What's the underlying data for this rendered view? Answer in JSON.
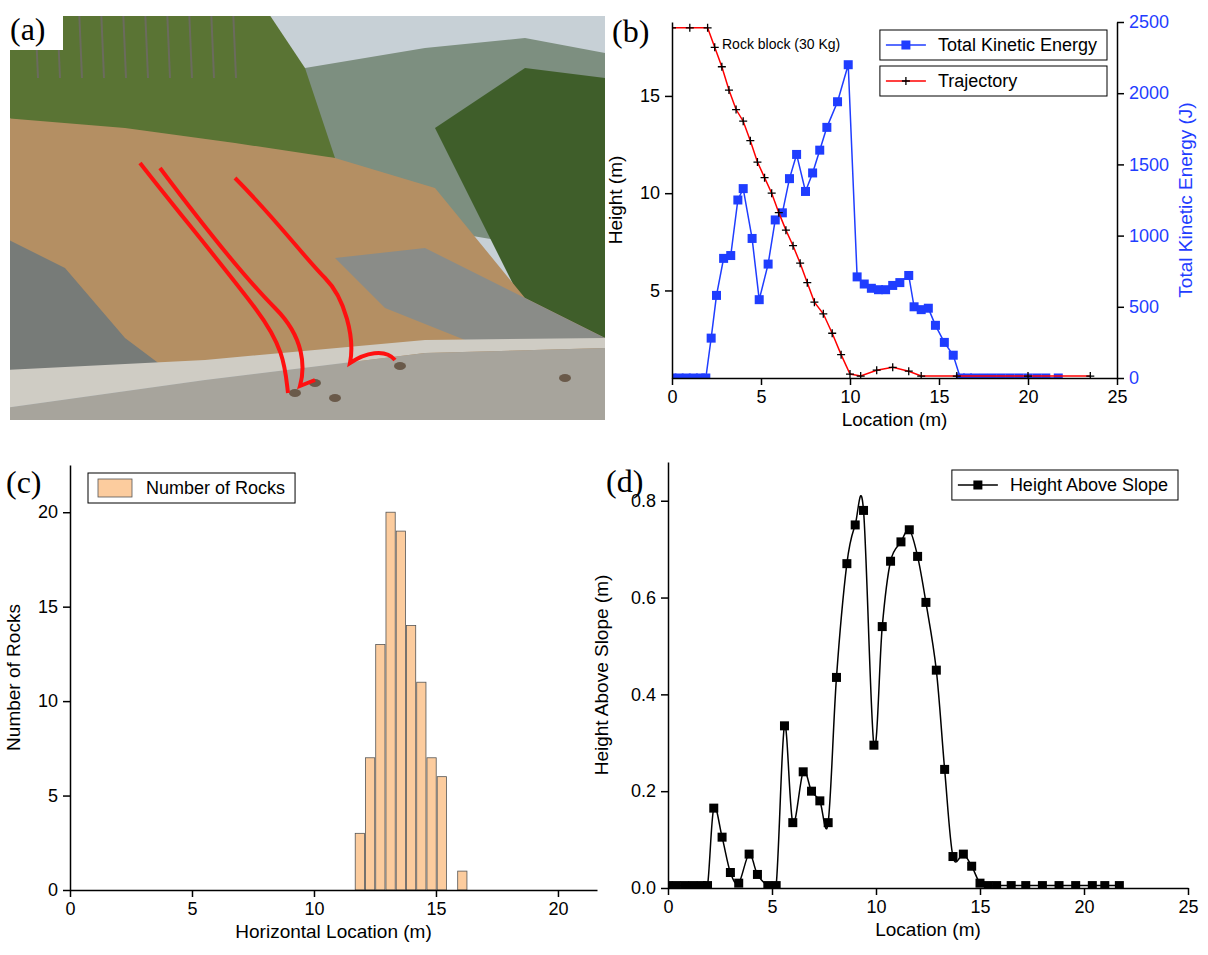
{
  "photo": {
    "panel_label": "(a)"
  },
  "chart_data": [
    {
      "type": "line",
      "panel_label": "(b)",
      "annotations": [
        "Rock block (30 Kg)"
      ],
      "xlabel": "Location (m)",
      "ylabel": "Height (m)",
      "y2label": "Total Kinetic Energy (J)",
      "xlim": [
        0,
        25
      ],
      "xticks": [
        0,
        5,
        10,
        15,
        20,
        25
      ],
      "ylim": [
        0.5,
        18.8
      ],
      "yticks": [
        5,
        10,
        15
      ],
      "y2lim": [
        0,
        2500
      ],
      "y2ticks": [
        0,
        500,
        1000,
        1500,
        2000,
        2500
      ],
      "legend": "upper right",
      "series": [
        {
          "name": "Total Kinetic Energy",
          "color": "#1f3dff",
          "marker": "square",
          "line_style": "solid",
          "axis": "y2",
          "x": [
            0,
            0.4,
            0.8,
            1.2,
            1.6,
            1.9,
            2.2,
            2.5,
            2.9,
            3.3,
            3.7,
            4.0,
            4.5,
            4.9,
            5.4,
            5.8,
            6.2,
            6.6,
            7.0,
            7.5,
            7.9,
            8.3,
            8.7,
            9.3,
            9.9,
            10.4,
            10.8,
            11.2,
            11.6,
            12.0,
            12.4,
            12.8,
            13.3,
            13.6,
            14.0,
            14.4,
            14.8,
            15.3,
            15.8,
            16.2,
            16.6,
            17.0,
            17.5,
            18.0,
            18.5,
            19.0,
            19.5,
            20.0,
            20.5,
            21.0,
            21.7
          ],
          "values": [
            0,
            0,
            0,
            0,
            0,
            0,
            280,
            580,
            840,
            860,
            1250,
            1330,
            980,
            550,
            800,
            1110,
            1160,
            1400,
            1570,
            1310,
            1440,
            1600,
            1760,
            1940,
            2200,
            710,
            660,
            630,
            620,
            620,
            650,
            670,
            720,
            500,
            480,
            490,
            370,
            250,
            160,
            0,
            0,
            0,
            0,
            0,
            0,
            0,
            0,
            0,
            0,
            0,
            0
          ]
        },
        {
          "name": "Trajectory",
          "color": "#ff0000",
          "marker": "plus",
          "line_style": "solid",
          "x": [
            0,
            1,
            2,
            2.4,
            2.8,
            3.2,
            3.6,
            4,
            4.4,
            4.8,
            5.2,
            5.6,
            6,
            6.4,
            6.8,
            7.2,
            7.6,
            8,
            8.5,
            9,
            9.5,
            10,
            10.6,
            11.5,
            12.4,
            13.3,
            14,
            16,
            20,
            23.5
          ],
          "values": [
            18.5,
            18.5,
            18.5,
            17.5,
            16.5,
            15.3,
            14.3,
            13.7,
            12.7,
            11.6,
            10.8,
            10,
            9,
            8.1,
            7.3,
            6.4,
            5.4,
            4.4,
            3.8,
            2.8,
            1.7,
            0.7,
            0.6,
            0.9,
            1.05,
            0.85,
            0.6,
            0.6,
            0.6,
            0.6
          ]
        }
      ]
    },
    {
      "type": "histogram",
      "panel_label": "(c)",
      "xlabel": "Horizontal Location (m)",
      "ylabel": "Number of Rocks",
      "xlim": [
        0,
        21.6
      ],
      "xticks": [
        0,
        5,
        10,
        15,
        20
      ],
      "ylim": [
        0,
        22.5
      ],
      "yticks": [
        0,
        5,
        10,
        15,
        20
      ],
      "legend": "upper left",
      "bins": [
        11.67,
        12.09,
        12.51,
        12.93,
        13.35,
        13.77,
        14.19,
        14.61,
        15.03,
        15.45,
        15.87,
        16.29
      ],
      "series": [
        {
          "name": "Number of Rocks",
          "color": "#fccc9e",
          "values": [
            3,
            7,
            13,
            20,
            19,
            14,
            11,
            7,
            6,
            0,
            1
          ]
        }
      ]
    },
    {
      "type": "line",
      "panel_label": "(d)",
      "xlabel": "Location (m)",
      "ylabel": "Height Above Slope (m)",
      "xlim": [
        0,
        25
      ],
      "xticks": [
        0,
        5,
        10,
        15,
        20,
        25
      ],
      "ylim": [
        0,
        0.88
      ],
      "yticks": [
        {
          "value": 0,
          "label": "0.0"
        },
        0.2,
        0.4,
        0.6,
        0.8
      ],
      "legend": "upper right",
      "series": [
        {
          "name": "Height Above Slope",
          "color": "#000000",
          "marker": "square",
          "line_style": "smooth",
          "x": [
            0,
            0.4,
            0.8,
            1.2,
            1.6,
            1.9,
            2.2,
            2.6,
            3.0,
            3.4,
            3.9,
            4.3,
            4.8,
            5.2,
            5.6,
            6.0,
            6.5,
            6.9,
            7.3,
            7.7,
            8.1,
            8.6,
            9.0,
            9.4,
            9.9,
            10.3,
            10.7,
            11.2,
            11.6,
            12.0,
            12.4,
            12.9,
            13.3,
            13.7,
            14.2,
            14.6,
            15.0,
            15.4,
            15.8,
            16.5,
            17.2,
            18.0,
            18.8,
            19.6,
            20.4,
            21.0,
            21.7
          ],
          "values": [
            0.005,
            0.005,
            0.005,
            0.005,
            0.005,
            0.005,
            0.165,
            0.105,
            0.032,
            0.01,
            0.07,
            0.028,
            0.005,
            0.005,
            0.335,
            0.135,
            0.24,
            0.2,
            0.18,
            0.135,
            0.435,
            0.67,
            0.75,
            0.78,
            0.295,
            0.54,
            0.675,
            0.715,
            0.74,
            0.685,
            0.59,
            0.45,
            0.245,
            0.065,
            0.07,
            0.045,
            0.01,
            0.005,
            0.005,
            0.005,
            0.005,
            0.005,
            0.005,
            0.005,
            0.005,
            0.005,
            0.005
          ]
        }
      ]
    }
  ]
}
